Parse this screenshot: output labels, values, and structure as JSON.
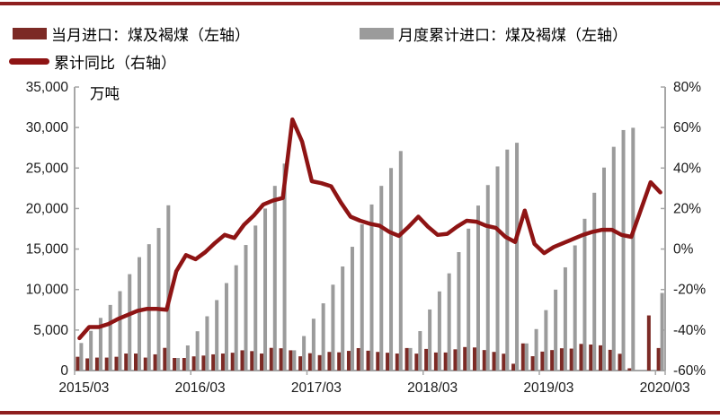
{
  "colors": {
    "monthly_bar": "#7C2A25",
    "cumulative_bar": "#9B9B9B",
    "yoy_line": "#8E1414",
    "axis": "#A6A6A6",
    "text": "#1A1A1A",
    "page_rule": "#8E1F1F"
  },
  "legend": {
    "items": [
      {
        "label": "当月进口：煤及褐煤（左轴）",
        "swatch": "bar",
        "color": "#7C2A25"
      },
      {
        "label": "月度累计进口：煤及褐煤（左轴）",
        "swatch": "bar",
        "color": "#9B9B9B"
      },
      {
        "label": "累计同比（右轴）",
        "swatch": "line",
        "color": "#8E1414"
      }
    ]
  },
  "chart_data": {
    "type": "bar+line",
    "unit_label": "万吨",
    "legend_position": "top-left",
    "grid": false,
    "left_axis": {
      "min": 0,
      "max": 35000,
      "step": 5000,
      "tick_labels": [
        "0",
        "5,000",
        "10,000",
        "15,000",
        "20,000",
        "25,000",
        "30,000",
        "35,000"
      ]
    },
    "right_axis": {
      "min": -60,
      "max": 80,
      "step": 20,
      "tick_labels": [
        "-60%",
        "-40%",
        "-20%",
        "0%",
        "20%",
        "40%",
        "60%",
        "80%"
      ]
    },
    "x_tick_labels": [
      "2015/03",
      "2016/03",
      "2017/03",
      "2018/03",
      "2019/03",
      "2020/03"
    ],
    "series": [
      {
        "name": "当月进口：煤及褐煤（左轴）",
        "type": "bar",
        "axis": "left",
        "key": "monthly"
      },
      {
        "name": "月度累计进口：煤及褐煤（左轴）",
        "type": "bar",
        "axis": "left",
        "key": "cumulative"
      },
      {
        "name": "累计同比（右轴）",
        "type": "line",
        "axis": "right",
        "key": "yoy_pct"
      }
    ],
    "months": [
      {
        "m": "2015/03",
        "cumulative": 3400,
        "monthly": 1700,
        "yoy_pct": -44
      },
      {
        "m": "2015/04",
        "cumulative": 4900,
        "monthly": 1500,
        "yoy_pct": -38.5
      },
      {
        "m": "2015/05",
        "cumulative": 6500,
        "monthly": 1600,
        "yoy_pct": -38.5
      },
      {
        "m": "2015/06",
        "cumulative": 8100,
        "monthly": 1600,
        "yoy_pct": -37
      },
      {
        "m": "2015/07",
        "cumulative": 9800,
        "monthly": 1700,
        "yoy_pct": -34.5
      },
      {
        "m": "2015/08",
        "cumulative": 11900,
        "monthly": 2100,
        "yoy_pct": -32.5
      },
      {
        "m": "2015/09",
        "cumulative": 14000,
        "monthly": 2100,
        "yoy_pct": -30.5
      },
      {
        "m": "2015/10",
        "cumulative": 15600,
        "monthly": 1600,
        "yoy_pct": -29.5
      },
      {
        "m": "2015/11",
        "cumulative": 17600,
        "monthly": 2000,
        "yoy_pct": -29.5
      },
      {
        "m": "2015/12",
        "cumulative": 20400,
        "monthly": 2800,
        "yoy_pct": -30
      },
      {
        "m": "2016/01",
        "cumulative": 1550,
        "monthly": 1550,
        "yoy_pct": -11
      },
      {
        "m": "2016/02",
        "cumulative": 3100,
        "monthly": 1550,
        "yoy_pct": -3
      },
      {
        "m": "2016/03",
        "cumulative": 4850,
        "monthly": 1750,
        "yoy_pct": -5
      },
      {
        "m": "2016/04",
        "cumulative": 6700,
        "monthly": 1850,
        "yoy_pct": -1.5
      },
      {
        "m": "2016/05",
        "cumulative": 8700,
        "monthly": 2000,
        "yoy_pct": 3
      },
      {
        "m": "2016/06",
        "cumulative": 10800,
        "monthly": 2100,
        "yoy_pct": 7
      },
      {
        "m": "2016/07",
        "cumulative": 13000,
        "monthly": 2200,
        "yoy_pct": 5.5
      },
      {
        "m": "2016/08",
        "cumulative": 15500,
        "monthly": 2500,
        "yoy_pct": 12
      },
      {
        "m": "2016/09",
        "cumulative": 17900,
        "monthly": 2400,
        "yoy_pct": 16.5
      },
      {
        "m": "2016/10",
        "cumulative": 20000,
        "monthly": 2100,
        "yoy_pct": 22
      },
      {
        "m": "2016/11",
        "cumulative": 22800,
        "monthly": 2800,
        "yoy_pct": 24
      },
      {
        "m": "2016/12",
        "cumulative": 25550,
        "monthly": 2750,
        "yoy_pct": 25.2
      },
      {
        "m": "2017/01",
        "cumulative": 2500,
        "monthly": 2500,
        "yoy_pct": 64
      },
      {
        "m": "2017/02",
        "cumulative": 4260,
        "monthly": 1760,
        "yoy_pct": 53
      },
      {
        "m": "2017/03",
        "cumulative": 6400,
        "monthly": 2140,
        "yoy_pct": 33.5
      },
      {
        "m": "2017/04",
        "cumulative": 8300,
        "monthly": 1900,
        "yoy_pct": 32.5
      },
      {
        "m": "2017/05",
        "cumulative": 10600,
        "monthly": 2300,
        "yoy_pct": 31
      },
      {
        "m": "2017/06",
        "cumulative": 12850,
        "monthly": 2250,
        "yoy_pct": 23
      },
      {
        "m": "2017/07",
        "cumulative": 15280,
        "monthly": 2430,
        "yoy_pct": 16
      },
      {
        "m": "2017/08",
        "cumulative": 18050,
        "monthly": 2770,
        "yoy_pct": 14
      },
      {
        "m": "2017/09",
        "cumulative": 20500,
        "monthly": 2450,
        "yoy_pct": 12.5
      },
      {
        "m": "2017/10",
        "cumulative": 22800,
        "monthly": 2300,
        "yoy_pct": 11.5
      },
      {
        "m": "2017/11",
        "cumulative": 25000,
        "monthly": 2200,
        "yoy_pct": 8.5
      },
      {
        "m": "2017/12",
        "cumulative": 27100,
        "monthly": 2100,
        "yoy_pct": 6.5
      },
      {
        "m": "2018/01",
        "cumulative": 2780,
        "monthly": 2780,
        "yoy_pct": 11
      },
      {
        "m": "2018/02",
        "cumulative": 4870,
        "monthly": 2090,
        "yoy_pct": 16
      },
      {
        "m": "2018/03",
        "cumulative": 7540,
        "monthly": 2670,
        "yoy_pct": 11
      },
      {
        "m": "2018/04",
        "cumulative": 9770,
        "monthly": 2230,
        "yoy_pct": 7
      },
      {
        "m": "2018/05",
        "cumulative": 12000,
        "monthly": 2230,
        "yoy_pct": 7.5
      },
      {
        "m": "2018/06",
        "cumulative": 14620,
        "monthly": 2620,
        "yoy_pct": 11
      },
      {
        "m": "2018/07",
        "cumulative": 17520,
        "monthly": 2900,
        "yoy_pct": 14
      },
      {
        "m": "2018/08",
        "cumulative": 20370,
        "monthly": 2850,
        "yoy_pct": 13.5
      },
      {
        "m": "2018/09",
        "cumulative": 22900,
        "monthly": 2530,
        "yoy_pct": 11.5
      },
      {
        "m": "2018/10",
        "cumulative": 25200,
        "monthly": 2300,
        "yoy_pct": 10.5
      },
      {
        "m": "2018/11",
        "cumulative": 27280,
        "monthly": 2080,
        "yoy_pct": 6
      },
      {
        "m": "2018/12",
        "cumulative": 28120,
        "monthly": 840,
        "yoy_pct": 3.5
      },
      {
        "m": "2019/01",
        "cumulative": 3350,
        "monthly": 3350,
        "yoy_pct": 19
      },
      {
        "m": "2019/02",
        "cumulative": 5120,
        "monthly": 1770,
        "yoy_pct": 2.5
      },
      {
        "m": "2019/03",
        "cumulative": 7460,
        "monthly": 2340,
        "yoy_pct": -2
      },
      {
        "m": "2019/04",
        "cumulative": 9990,
        "monthly": 2530,
        "yoy_pct": 1
      },
      {
        "m": "2019/05",
        "cumulative": 12740,
        "monthly": 2750,
        "yoy_pct": 3
      },
      {
        "m": "2019/06",
        "cumulative": 15450,
        "monthly": 2710,
        "yoy_pct": 5
      },
      {
        "m": "2019/07",
        "cumulative": 18740,
        "monthly": 3290,
        "yoy_pct": 7
      },
      {
        "m": "2019/08",
        "cumulative": 21950,
        "monthly": 3210,
        "yoy_pct": 8.5
      },
      {
        "m": "2019/09",
        "cumulative": 25060,
        "monthly": 3110,
        "yoy_pct": 9.5
      },
      {
        "m": "2019/10",
        "cumulative": 27620,
        "monthly": 2560,
        "yoy_pct": 9.5
      },
      {
        "m": "2019/11",
        "cumulative": 29690,
        "monthly": 2070,
        "yoy_pct": 7
      },
      {
        "m": "2019/12",
        "cumulative": 29970,
        "monthly": 280,
        "yoy_pct": 6
      },
      {
        "m": "2020/01",
        "cumulative": null,
        "monthly": null,
        "yoy_pct": null
      },
      {
        "m": "2020/02",
        "cumulative": null,
        "monthly": 6806,
        "yoy_pct": 33
      },
      {
        "m": "2020/03",
        "cumulative": 9578,
        "monthly": 2780,
        "yoy_pct": 28
      }
    ]
  }
}
